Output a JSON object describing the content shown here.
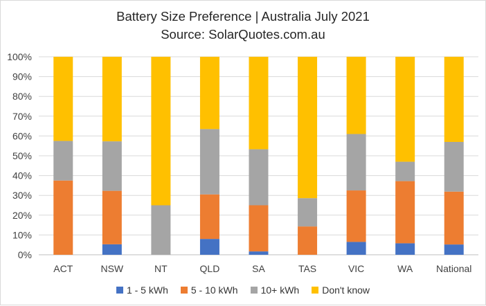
{
  "chart_data": {
    "type": "bar",
    "stacked": true,
    "title": "Battery Size Preference  | Australia July 2021",
    "subtitle": "Source: SolarQuotes.com.au",
    "categories": [
      "ACT",
      "NSW",
      "NT",
      "QLD",
      "SA",
      "TAS",
      "VIC",
      "WA",
      "National"
    ],
    "ylim": [
      0,
      100
    ],
    "y_ticks": [
      "0%",
      "10%",
      "20%",
      "30%",
      "40%",
      "50%",
      "60%",
      "70%",
      "80%",
      "90%",
      "100%"
    ],
    "grid": true,
    "legend_position": "bottom",
    "series": [
      {
        "name": "1 - 5 kWh",
        "color": "#4472C4",
        "values": [
          0,
          5.3,
          0,
          8,
          1.7,
          0,
          6.5,
          5.8,
          5.2
        ]
      },
      {
        "name": "5 - 10 kWh",
        "color": "#ED7D31",
        "values": [
          37.5,
          27,
          0,
          22.5,
          23.3,
          14.3,
          26,
          31.4,
          26.7
        ]
      },
      {
        "name": "10+ kWh",
        "color": "#A5A5A5",
        "values": [
          20,
          25,
          25,
          33,
          28.3,
          14.3,
          28.5,
          9.8,
          25.1
        ]
      },
      {
        "name": "Don't know",
        "color": "#FFC000",
        "values": [
          42.5,
          42.7,
          75,
          36.5,
          46.7,
          71.4,
          39,
          53,
          43
        ]
      }
    ]
  }
}
